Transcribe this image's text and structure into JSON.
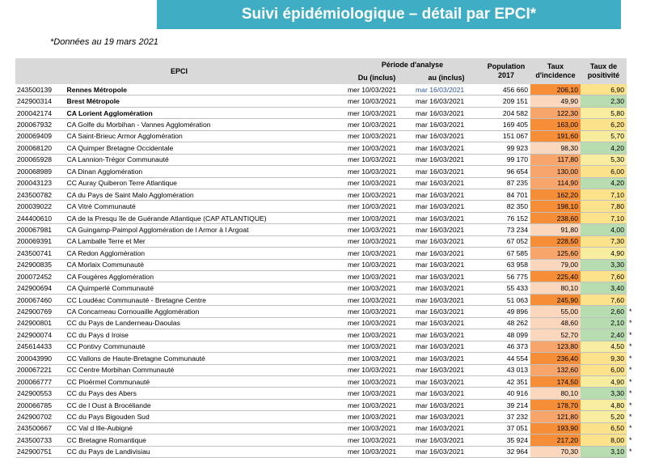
{
  "title": "Suivi épidémiologique – détail par EPCI*",
  "note": "*Données au 19 mars 2021",
  "headers": {
    "epci": "EPCI",
    "periode": "Période d'analyse",
    "du": "Du (inclus)",
    "au": "au (inclus)",
    "population": "Population 2017",
    "taux_incidence": "Taux d'incidence",
    "taux_positivite": "Taux de positivité"
  },
  "colors": {
    "banner": "#3faec4",
    "header_bg": "#d9d9d9",
    "incidence_high": "#f58e37",
    "incidence_mid": "#f7a56b",
    "incidence_low": "#fad7bd",
    "positivity_high": "#fde28c",
    "positivity_mid": "#f8ec9f",
    "positivity_low": "#b7dcb0"
  },
  "rows": [
    {
      "code": "243500139",
      "name": "Rennes Métropole",
      "du": "mer 10/03/2021",
      "au": "mar 16/03/2021",
      "pop": "456 660",
      "inc": "206,10",
      "pos": "6,90",
      "star": ""
    },
    {
      "code": "242900314",
      "name": "Brest Métropole",
      "du": "mer 10/03/2021",
      "au": "mar 16/03/2021",
      "pop": "209 151",
      "inc": "49,90",
      "pos": "2,30",
      "star": ""
    },
    {
      "code": "200042174",
      "name": "CA Lorient Agglomération",
      "du": "mer 10/03/2021",
      "au": "mar 16/03/2021",
      "pop": "204 582",
      "inc": "122,30",
      "pos": "5,80",
      "star": ""
    },
    {
      "code": "200067932",
      "name": "CA Golfe du Morbihan - Vannes Agglomération",
      "du": "mer 10/03/2021",
      "au": "mar 16/03/2021",
      "pop": "169 405",
      "inc": "163,00",
      "pos": "6,20",
      "star": ""
    },
    {
      "code": "200069409",
      "name": "CA Saint-Brieuc Armor Agglomération",
      "du": "mer 10/03/2021",
      "au": "mar 16/03/2021",
      "pop": "151 067",
      "inc": "191,60",
      "pos": "5,70",
      "star": ""
    },
    {
      "code": "200068120",
      "name": "CA Quimper Bretagne Occidentale",
      "du": "mer 10/03/2021",
      "au": "mar 16/03/2021",
      "pop": "99 923",
      "inc": "98,30",
      "pos": "4,20",
      "star": ""
    },
    {
      "code": "200065928",
      "name": "CA Lannion-Trégor Communauté",
      "du": "mer 10/03/2021",
      "au": "mar 16/03/2021",
      "pop": "99 170",
      "inc": "117,80",
      "pos": "5,30",
      "star": ""
    },
    {
      "code": "200068989",
      "name": "CA Dinan Agglomération",
      "du": "mer 10/03/2021",
      "au": "mar 16/03/2021",
      "pop": "96 654",
      "inc": "130,00",
      "pos": "6,00",
      "star": ""
    },
    {
      "code": "200043123",
      "name": "CC Auray Quiberon Terre Atlantique",
      "du": "mer 10/03/2021",
      "au": "mar 16/03/2021",
      "pop": "87 235",
      "inc": "114,90",
      "pos": "4,20",
      "star": ""
    },
    {
      "code": "243500782",
      "name": "CA du Pays de Saint Malo Agglomération",
      "du": "mer 10/03/2021",
      "au": "mar 16/03/2021",
      "pop": "84 701",
      "inc": "162,20",
      "pos": "7,10",
      "star": ""
    },
    {
      "code": "200039022",
      "name": "CA Vitré Communauté",
      "du": "mer 10/03/2021",
      "au": "mar 16/03/2021",
      "pop": "82 350",
      "inc": "198,10",
      "pos": "7,80",
      "star": ""
    },
    {
      "code": "244400610",
      "name": "CA de la Presqu île de Guérande Atlantique (CAP ATLANTIQUE)",
      "du": "mer 10/03/2021",
      "au": "mar 16/03/2021",
      "pop": "76 152",
      "inc": "238,60",
      "pos": "7,10",
      "star": ""
    },
    {
      "code": "200067981",
      "name": "CA Guingamp-Paimpol Agglomération de l Armor à l Argoat",
      "du": "mer 10/03/2021",
      "au": "mar 16/03/2021",
      "pop": "73 234",
      "inc": "91,80",
      "pos": "4,00",
      "star": ""
    },
    {
      "code": "200069391",
      "name": "CA Lamballe Terre et Mer",
      "du": "mer 10/03/2021",
      "au": "mar 16/03/2021",
      "pop": "67 052",
      "inc": "228,50",
      "pos": "7,30",
      "star": ""
    },
    {
      "code": "243500741",
      "name": "CA Redon Agglomération",
      "du": "mer 10/03/2021",
      "au": "mar 16/03/2021",
      "pop": "67 585",
      "inc": "125,60",
      "pos": "4,90",
      "star": ""
    },
    {
      "code": "242900835",
      "name": "CA Morlaix Communauté",
      "du": "mer 10/03/2021",
      "au": "mar 16/03/2021",
      "pop": "63 958",
      "inc": "79,00",
      "pos": "3,30",
      "star": ""
    },
    {
      "code": "200072452",
      "name": "CA Fougères Agglomération",
      "du": "mer 10/03/2021",
      "au": "mar 16/03/2021",
      "pop": "56 775",
      "inc": "225,40",
      "pos": "7,60",
      "star": ""
    },
    {
      "code": "242900694",
      "name": "CA Quimperlé Communauté",
      "du": "mer 10/03/2021",
      "au": "mar 16/03/2021",
      "pop": "55 433",
      "inc": "80,10",
      "pos": "3,40",
      "star": ""
    },
    {
      "code": "200067460",
      "name": "CC Loudéac Communauté - Bretagne Centre",
      "du": "mer 10/03/2021",
      "au": "mar 16/03/2021",
      "pop": "51 063",
      "inc": "245,90",
      "pos": "7,60",
      "star": ""
    },
    {
      "code": "242900769",
      "name": "CA Concarneau Cornouaille Agglomération",
      "du": "mer 10/03/2021",
      "au": "mar 16/03/2021",
      "pop": "49 896",
      "inc": "55,00",
      "pos": "2,60",
      "star": "*"
    },
    {
      "code": "242900801",
      "name": "CC du Pays de Landerneau-Daoulas",
      "du": "mer 10/03/2021",
      "au": "mar 16/03/2021",
      "pop": "48 262",
      "inc": "48,60",
      "pos": "2,10",
      "star": "*"
    },
    {
      "code": "242900074",
      "name": "CC du Pays d Iroise",
      "du": "mer 10/03/2021",
      "au": "mar 16/03/2021",
      "pop": "48 099",
      "inc": "52,70",
      "pos": "2,40",
      "star": "*"
    },
    {
      "code": "245614433",
      "name": "CC Pontivy Communauté",
      "du": "mer 10/03/2021",
      "au": "mar 16/03/2021",
      "pop": "46 373",
      "inc": "123,80",
      "pos": "4,50",
      "star": "*"
    },
    {
      "code": "200043990",
      "name": "CC Vallons de Haute-Bretagne Communauté",
      "du": "mer 10/03/2021",
      "au": "mar 16/03/2021",
      "pop": "44 554",
      "inc": "236,40",
      "pos": "9,30",
      "star": "*"
    },
    {
      "code": "200067221",
      "name": "CC Centre Morbihan Communauté",
      "du": "mer 10/03/2021",
      "au": "mar 16/03/2021",
      "pop": "43 013",
      "inc": "132,60",
      "pos": "6,00",
      "star": "*"
    },
    {
      "code": "200066777",
      "name": "CC Ploërmel Communauté",
      "du": "mer 10/03/2021",
      "au": "mar 16/03/2021",
      "pop": "42 351",
      "inc": "174,50",
      "pos": "4,90",
      "star": "*"
    },
    {
      "code": "242900553",
      "name": "CC du Pays des Abers",
      "du": "mer 10/03/2021",
      "au": "mar 16/03/2021",
      "pop": "40 916",
      "inc": "80,10",
      "pos": "3,30",
      "star": "*"
    },
    {
      "code": "200066785",
      "name": "CC de l Oust à Brocéliande",
      "du": "mer 10/03/2021",
      "au": "mar 16/03/2021",
      "pop": "39 214",
      "inc": "178,70",
      "pos": "4,80",
      "star": "*"
    },
    {
      "code": "242900702",
      "name": "CC du Pays Bigouden Sud",
      "du": "mer 10/03/2021",
      "au": "mar 16/03/2021",
      "pop": "37 232",
      "inc": "121,80",
      "pos": "5,20",
      "star": "*"
    },
    {
      "code": "243500667",
      "name": "CC Val d Ille-Aubigné",
      "du": "mer 10/03/2021",
      "au": "mar 16/03/2021",
      "pop": "37 051",
      "inc": "193,90",
      "pos": "6,50",
      "star": "*"
    },
    {
      "code": "243500733",
      "name": "CC Bretagne Romantique",
      "du": "mer 10/03/2021",
      "au": "mar 16/03/2021",
      "pop": "35 924",
      "inc": "217,20",
      "pos": "8,00",
      "star": "*"
    },
    {
      "code": "242900751",
      "name": "CC du Pays de Landivisiau",
      "du": "mer 10/03/2021",
      "au": "mar 16/03/2021",
      "pop": "32 964",
      "inc": "70,30",
      "pos": "3,10",
      "star": "*"
    }
  ]
}
